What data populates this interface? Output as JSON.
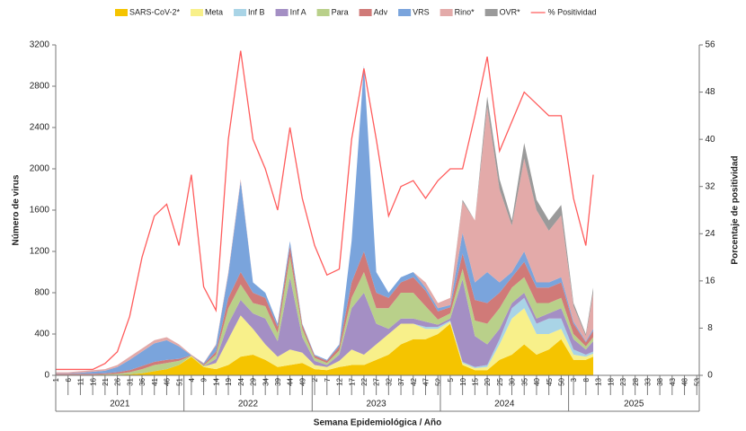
{
  "chart_data": {
    "type": "stacked-area",
    "y_label": "Número de virus",
    "y2_label": "Porcentaje de positividad",
    "x_label": "Semana Epidemiológica / Año",
    "x": [
      0,
      5,
      10,
      15,
      20,
      25,
      30,
      35,
      40,
      45,
      50,
      55,
      60,
      65,
      70,
      75,
      80,
      85,
      90,
      95,
      100,
      105,
      110,
      115,
      120,
      125,
      130,
      135,
      140,
      145,
      150,
      155,
      160,
      165,
      170,
      175,
      180,
      185,
      190,
      195,
      200,
      205,
      210,
      215,
      218
    ],
    "xlim": [
      0,
      261
    ],
    "xticks": [
      {
        "value": 0,
        "label": "1"
      },
      {
        "value": 5,
        "label": "6"
      },
      {
        "value": 10,
        "label": "11"
      },
      {
        "value": 15,
        "label": "16"
      },
      {
        "value": 20,
        "label": "21"
      },
      {
        "value": 25,
        "label": "26"
      },
      {
        "value": 30,
        "label": "31"
      },
      {
        "value": 35,
        "label": "36"
      },
      {
        "value": 40,
        "label": "41"
      },
      {
        "value": 45,
        "label": "46"
      },
      {
        "value": 50,
        "label": "51"
      },
      {
        "value": 55,
        "label": "4"
      },
      {
        "value": 60,
        "label": "9"
      },
      {
        "value": 65,
        "label": "14"
      },
      {
        "value": 70,
        "label": "19"
      },
      {
        "value": 75,
        "label": "24"
      },
      {
        "value": 80,
        "label": "29"
      },
      {
        "value": 85,
        "label": "34"
      },
      {
        "value": 90,
        "label": "39"
      },
      {
        "value": 95,
        "label": "44"
      },
      {
        "value": 100,
        "label": "49"
      },
      {
        "value": 105,
        "label": "2"
      },
      {
        "value": 110,
        "label": "7"
      },
      {
        "value": 115,
        "label": "12"
      },
      {
        "value": 120,
        "label": "17"
      },
      {
        "value": 125,
        "label": "22"
      },
      {
        "value": 130,
        "label": "27"
      },
      {
        "value": 135,
        "label": "32"
      },
      {
        "value": 140,
        "label": "37"
      },
      {
        "value": 145,
        "label": "42"
      },
      {
        "value": 150,
        "label": "47"
      },
      {
        "value": 155,
        "label": "52"
      },
      {
        "value": 160,
        "label": "5"
      },
      {
        "value": 165,
        "label": "10"
      },
      {
        "value": 170,
        "label": "15"
      },
      {
        "value": 175,
        "label": "20"
      },
      {
        "value": 180,
        "label": "25"
      },
      {
        "value": 185,
        "label": "30"
      },
      {
        "value": 190,
        "label": "35"
      },
      {
        "value": 195,
        "label": "40"
      },
      {
        "value": 200,
        "label": "45"
      },
      {
        "value": 205,
        "label": "50"
      },
      {
        "value": 210,
        "label": "3"
      },
      {
        "value": 215,
        "label": "8"
      },
      {
        "value": 220,
        "label": "13"
      },
      {
        "value": 225,
        "label": "18"
      },
      {
        "value": 230,
        "label": "23"
      },
      {
        "value": 235,
        "label": "28"
      },
      {
        "value": 240,
        "label": "33"
      },
      {
        "value": 245,
        "label": "38"
      },
      {
        "value": 250,
        "label": "43"
      },
      {
        "value": 255,
        "label": "48"
      },
      {
        "value": 260,
        "label": "53"
      }
    ],
    "years": [
      "2021",
      "2022",
      "2023",
      "2024",
      "2025"
    ],
    "ylim": [
      0,
      3200
    ],
    "yticks": [
      0,
      400,
      800,
      1200,
      1600,
      2000,
      2400,
      2800,
      3200
    ],
    "y2lim": [
      0,
      56
    ],
    "y2ticks": [
      0,
      8,
      16,
      24,
      32,
      40,
      48,
      56
    ],
    "series": [
      {
        "name": "SARS-CoV-2*",
        "color": "#f5c400",
        "values": [
          0,
          0,
          0,
          0,
          5,
          5,
          10,
          20,
          40,
          60,
          100,
          180,
          80,
          60,
          100,
          180,
          200,
          150,
          80,
          100,
          120,
          60,
          50,
          80,
          100,
          100,
          150,
          200,
          300,
          350,
          350,
          400,
          500,
          100,
          50,
          50,
          150,
          200,
          300,
          200,
          250,
          350,
          150,
          150,
          180
        ]
      },
      {
        "name": "Meta",
        "color": "#f8f08a",
        "values": [
          0,
          0,
          0,
          0,
          0,
          0,
          0,
          0,
          0,
          0,
          0,
          5,
          5,
          60,
          250,
          400,
          250,
          150,
          100,
          150,
          100,
          40,
          30,
          60,
          150,
          100,
          150,
          200,
          200,
          150,
          100,
          50,
          20,
          20,
          20,
          30,
          150,
          350,
          350,
          200,
          150,
          100,
          50,
          30,
          30
        ]
      },
      {
        "name": "Inf B",
        "color": "#a9d4e6",
        "values": [
          0,
          0,
          0,
          0,
          0,
          0,
          0,
          0,
          0,
          0,
          0,
          0,
          0,
          0,
          0,
          0,
          0,
          0,
          0,
          0,
          0,
          0,
          0,
          0,
          0,
          0,
          0,
          0,
          0,
          0,
          20,
          20,
          10,
          10,
          10,
          20,
          50,
          100,
          100,
          100,
          150,
          100,
          50,
          20,
          20
        ]
      },
      {
        "name": "Inf A",
        "color": "#a48fc4",
        "values": [
          0,
          0,
          0,
          0,
          0,
          0,
          0,
          0,
          0,
          0,
          0,
          0,
          0,
          40,
          150,
          150,
          150,
          250,
          150,
          700,
          150,
          40,
          20,
          60,
          400,
          600,
          200,
          50,
          50,
          50,
          50,
          20,
          20,
          800,
          300,
          200,
          100,
          50,
          50,
          50,
          50,
          100,
          100,
          50,
          100
        ]
      },
      {
        "name": "Para",
        "color": "#b9d08a",
        "values": [
          5,
          5,
          5,
          5,
          5,
          10,
          20,
          40,
          60,
          60,
          40,
          5,
          10,
          40,
          150,
          150,
          100,
          120,
          80,
          200,
          80,
          30,
          20,
          40,
          100,
          200,
          150,
          200,
          250,
          250,
          150,
          50,
          50,
          100,
          150,
          200,
          200,
          150,
          150,
          150,
          100,
          100,
          50,
          30,
          40
        ]
      },
      {
        "name": "Adv",
        "color": "#d07a78",
        "values": [
          10,
          10,
          10,
          10,
          10,
          15,
          20,
          30,
          30,
          30,
          20,
          5,
          10,
          30,
          100,
          120,
          100,
          80,
          60,
          100,
          40,
          20,
          20,
          40,
          150,
          200,
          150,
          100,
          100,
          150,
          150,
          80,
          60,
          150,
          200,
          200,
          150,
          100,
          150,
          150,
          150,
          150,
          100,
          40,
          60
        ]
      },
      {
        "name": "VRS",
        "color": "#7aa4dc",
        "values": [
          5,
          5,
          10,
          20,
          25,
          50,
          100,
          140,
          180,
          190,
          120,
          0,
          10,
          60,
          230,
          880,
          100,
          50,
          30,
          50,
          10,
          10,
          10,
          20,
          400,
          1800,
          200,
          50,
          50,
          50,
          30,
          30,
          20,
          200,
          170,
          300,
          100,
          50,
          100,
          50,
          50,
          50,
          20,
          10,
          20
        ]
      },
      {
        "name": "Rino*",
        "color": "#e3aaa9",
        "values": [
          10,
          10,
          15,
          15,
          15,
          20,
          30,
          30,
          30,
          30,
          20,
          5,
          5,
          10,
          20,
          20,
          0,
          0,
          0,
          0,
          0,
          0,
          0,
          0,
          0,
          0,
          0,
          0,
          0,
          0,
          50,
          50,
          70,
          300,
          600,
          1600,
          900,
          450,
          900,
          700,
          500,
          600,
          150,
          50,
          350
        ]
      },
      {
        "name": "OVR*",
        "color": "#9a9a9a",
        "values": [
          0,
          0,
          0,
          0,
          0,
          0,
          0,
          0,
          0,
          0,
          0,
          0,
          0,
          0,
          0,
          0,
          0,
          0,
          0,
          0,
          0,
          0,
          0,
          0,
          0,
          0,
          0,
          0,
          0,
          0,
          0,
          0,
          0,
          20,
          0,
          100,
          100,
          50,
          150,
          100,
          100,
          100,
          30,
          20,
          50
        ]
      }
    ],
    "line": {
      "name": "% Positividad",
      "color": "#ff5c5c",
      "axis": "y2",
      "values": [
        1,
        1,
        1,
        1,
        2,
        4,
        10,
        20,
        27,
        29,
        22,
        34,
        15,
        11,
        40,
        55,
        40,
        35,
        28,
        42,
        30,
        22,
        17,
        18,
        40,
        52,
        40,
        27,
        32,
        33,
        30,
        33,
        35,
        35,
        44,
        54,
        38,
        43,
        48,
        46,
        44,
        44,
        30,
        22,
        34
      ]
    }
  }
}
